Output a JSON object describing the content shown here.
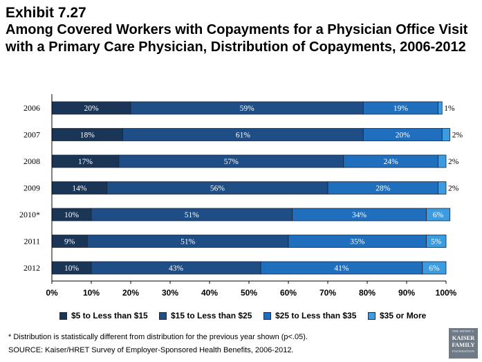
{
  "header": {
    "exhibit": "Exhibit 7.27",
    "title": "Among Covered Workers with Copayments for a Physician Office Visit with a Primary Care Physician, Distribution of Copayments, 2006-2012"
  },
  "chart_data": {
    "type": "bar",
    "orientation": "horizontal",
    "stacked": true,
    "categories": [
      "2006",
      "2007",
      "2008",
      "2009",
      "2010*",
      "2011",
      "2012"
    ],
    "series": [
      {
        "name": "$5 to Less than $15",
        "color": "#1a3556",
        "values": [
          20,
          18,
          17,
          14,
          10,
          9,
          10
        ]
      },
      {
        "name": "$15 to Less than $25",
        "color": "#1f4e86",
        "values": [
          59,
          61,
          57,
          56,
          51,
          51,
          43
        ]
      },
      {
        "name": "$25 to Less than $35",
        "color": "#1f6fbe",
        "values": [
          19,
          20,
          24,
          28,
          34,
          35,
          41
        ]
      },
      {
        "name": "$35 or More",
        "color": "#3d9be0",
        "values": [
          1,
          2,
          2,
          2,
          6,
          5,
          6
        ]
      }
    ],
    "labels": [
      [
        "20%",
        "59%",
        "19%",
        "1%"
      ],
      [
        "18%",
        "61%",
        "20%",
        "2%"
      ],
      [
        "17%",
        "57%",
        "24%",
        "2%"
      ],
      [
        "14%",
        "56%",
        "28%",
        "2%"
      ],
      [
        "10%",
        "51%",
        "34%",
        "6%"
      ],
      [
        "9%",
        "51%",
        "35%",
        "5%"
      ],
      [
        "10%",
        "43%",
        "41%",
        "6%"
      ]
    ],
    "xlim": [
      0,
      100
    ],
    "xticks": [
      "0%",
      "10%",
      "20%",
      "30%",
      "40%",
      "50%",
      "60%",
      "70%",
      "80%",
      "90%",
      "100%"
    ],
    "grid": false,
    "legend_position": "bottom"
  },
  "footnote": "* Distribution is statistically different from distribution for the previous year shown (p<.05).",
  "source": "SOURCE:  Kaiser/HRET Survey of Employer-Sponsored Health Benefits, 2006-2012.",
  "logo": {
    "line1": "THE HENRY J.",
    "line2": "KAISER",
    "line3": "FAMILY",
    "line4": "FOUNDATION"
  }
}
